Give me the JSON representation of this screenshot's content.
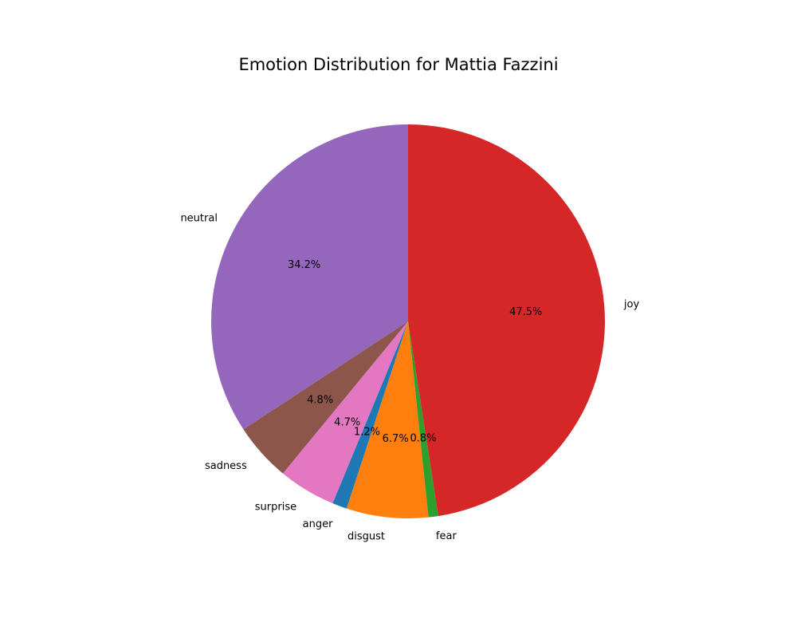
{
  "chart_data": {
    "type": "pie",
    "title": "Emotion Distribution for Mattia Fazzini",
    "start_angle_deg": 90,
    "direction": "counterclockwise",
    "slices": [
      {
        "label": "neutral",
        "value": 34.2,
        "pct_label": "34.2%",
        "color": "#9467bd"
      },
      {
        "label": "sadness",
        "value": 4.8,
        "pct_label": "4.8%",
        "color": "#8c564b"
      },
      {
        "label": "surprise",
        "value": 4.7,
        "pct_label": "4.7%",
        "color": "#e377c2"
      },
      {
        "label": "anger",
        "value": 1.2,
        "pct_label": "1.2%",
        "color": "#1f77b4"
      },
      {
        "label": "disgust",
        "value": 6.7,
        "pct_label": "6.7%",
        "color": "#ff7f0e"
      },
      {
        "label": "fear",
        "value": 0.8,
        "pct_label": "0.8%",
        "color": "#2ca02c"
      },
      {
        "label": "joy",
        "value": 47.5,
        "pct_label": "47.5%",
        "color": "#d62728"
      }
    ]
  }
}
